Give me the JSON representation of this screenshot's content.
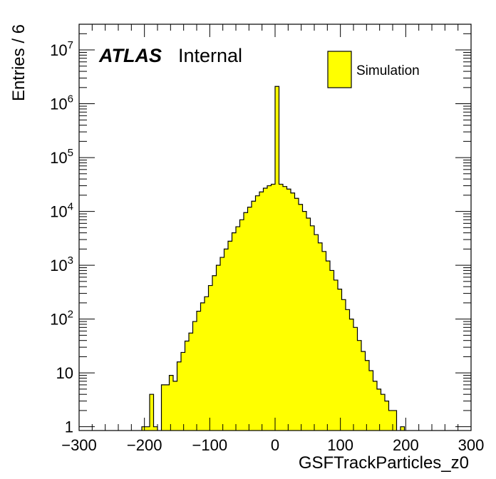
{
  "chart_data": {
    "type": "bar",
    "histogram": true,
    "title": "",
    "xlabel": "GSFTrackParticles_z0",
    "ylabel": "Entries / 6",
    "xlim": [
      -300,
      300
    ],
    "ylim": [
      0.85,
      30000000
    ],
    "yscale": "log",
    "bin_width": 6,
    "fill_color": "#ffff00",
    "line_color": "#000000",
    "grid": false,
    "x_tick_labels": [
      "−300",
      "−200",
      "−100",
      "0",
      "100",
      "200",
      "300"
    ],
    "x_tick_values": [
      -300,
      -200,
      -100,
      0,
      100,
      200,
      300
    ],
    "y_tick_labels": [
      {
        "value": 1,
        "base": "1",
        "exp": ""
      },
      {
        "value": 10,
        "base": "10",
        "exp": ""
      },
      {
        "value": 100,
        "base": "10",
        "exp": "2"
      },
      {
        "value": 1000,
        "base": "10",
        "exp": "3"
      },
      {
        "value": 10000,
        "base": "10",
        "exp": "4"
      },
      {
        "value": 100000,
        "base": "10",
        "exp": "5"
      },
      {
        "value": 1000000,
        "base": "10",
        "exp": "6"
      },
      {
        "value": 10000000,
        "base": "10",
        "exp": "7"
      }
    ],
    "atlas_label": "ATLAS",
    "atlas_status": "Internal",
    "legend": {
      "position": "top-right",
      "entries": [
        {
          "name": "Simulation",
          "color": "#ffff00"
        }
      ]
    },
    "bins": [
      {
        "x0": -204,
        "x1": -198,
        "y": 1
      },
      {
        "x0": -198,
        "x1": -192,
        "y": 1
      },
      {
        "x0": -192,
        "x1": -186,
        "y": 4
      },
      {
        "x0": -186,
        "x1": -180,
        "y": 1
      },
      {
        "x0": -174,
        "x1": -168,
        "y": 6
      },
      {
        "x0": -168,
        "x1": -162,
        "y": 6
      },
      {
        "x0": -162,
        "x1": -156,
        "y": 9
      },
      {
        "x0": -156,
        "x1": -150,
        "y": 7
      },
      {
        "x0": -150,
        "x1": -144,
        "y": 16
      },
      {
        "x0": -144,
        "x1": -138,
        "y": 24
      },
      {
        "x0": -138,
        "x1": -132,
        "y": 39
      },
      {
        "x0": -132,
        "x1": -126,
        "y": 55
      },
      {
        "x0": -126,
        "x1": -120,
        "y": 90
      },
      {
        "x0": -120,
        "x1": -114,
        "y": 140
      },
      {
        "x0": -114,
        "x1": -108,
        "y": 200
      },
      {
        "x0": -108,
        "x1": -102,
        "y": 260
      },
      {
        "x0": -102,
        "x1": -96,
        "y": 420
      },
      {
        "x0": -96,
        "x1": -90,
        "y": 640
      },
      {
        "x0": -90,
        "x1": -84,
        "y": 1000
      },
      {
        "x0": -84,
        "x1": -78,
        "y": 1400
      },
      {
        "x0": -78,
        "x1": -72,
        "y": 2000
      },
      {
        "x0": -72,
        "x1": -66,
        "y": 2800
      },
      {
        "x0": -66,
        "x1": -60,
        "y": 4000
      },
      {
        "x0": -60,
        "x1": -54,
        "y": 5200
      },
      {
        "x0": -54,
        "x1": -48,
        "y": 7000
      },
      {
        "x0": -48,
        "x1": -42,
        "y": 9500
      },
      {
        "x0": -42,
        "x1": -36,
        "y": 12000
      },
      {
        "x0": -36,
        "x1": -30,
        "y": 15500
      },
      {
        "x0": -30,
        "x1": -24,
        "y": 19500
      },
      {
        "x0": -24,
        "x1": -18,
        "y": 23000
      },
      {
        "x0": -18,
        "x1": -12,
        "y": 27000
      },
      {
        "x0": -12,
        "x1": -6,
        "y": 30000
      },
      {
        "x0": -6,
        "x1": 0,
        "y": 32000
      },
      {
        "x0": 0,
        "x1": 6,
        "y": 2100000
      },
      {
        "x0": 6,
        "x1": 12,
        "y": 32000
      },
      {
        "x0": 12,
        "x1": 18,
        "y": 29000
      },
      {
        "x0": 18,
        "x1": 24,
        "y": 26000
      },
      {
        "x0": 24,
        "x1": 30,
        "y": 22000
      },
      {
        "x0": 30,
        "x1": 36,
        "y": 17500
      },
      {
        "x0": 36,
        "x1": 42,
        "y": 13500
      },
      {
        "x0": 42,
        "x1": 48,
        "y": 10000
      },
      {
        "x0": 48,
        "x1": 54,
        "y": 7500
      },
      {
        "x0": 54,
        "x1": 60,
        "y": 5400
      },
      {
        "x0": 60,
        "x1": 66,
        "y": 3700
      },
      {
        "x0": 66,
        "x1": 72,
        "y": 2600
      },
      {
        "x0": 72,
        "x1": 78,
        "y": 1800
      },
      {
        "x0": 78,
        "x1": 84,
        "y": 1200
      },
      {
        "x0": 84,
        "x1": 90,
        "y": 800
      },
      {
        "x0": 90,
        "x1": 96,
        "y": 530
      },
      {
        "x0": 96,
        "x1": 102,
        "y": 360
      },
      {
        "x0": 102,
        "x1": 108,
        "y": 230
      },
      {
        "x0": 108,
        "x1": 114,
        "y": 150
      },
      {
        "x0": 114,
        "x1": 120,
        "y": 100
      },
      {
        "x0": 120,
        "x1": 126,
        "y": 70
      },
      {
        "x0": 126,
        "x1": 132,
        "y": 40
      },
      {
        "x0": 132,
        "x1": 138,
        "y": 25
      },
      {
        "x0": 138,
        "x1": 144,
        "y": 17
      },
      {
        "x0": 144,
        "x1": 150,
        "y": 11
      },
      {
        "x0": 150,
        "x1": 156,
        "y": 7
      },
      {
        "x0": 156,
        "x1": 162,
        "y": 5
      },
      {
        "x0": 162,
        "x1": 168,
        "y": 4
      },
      {
        "x0": 168,
        "x1": 174,
        "y": 3
      },
      {
        "x0": 174,
        "x1": 180,
        "y": 2
      },
      {
        "x0": 180,
        "x1": 186,
        "y": 2
      },
      {
        "x0": 192,
        "x1": 198,
        "y": 1
      }
    ]
  }
}
